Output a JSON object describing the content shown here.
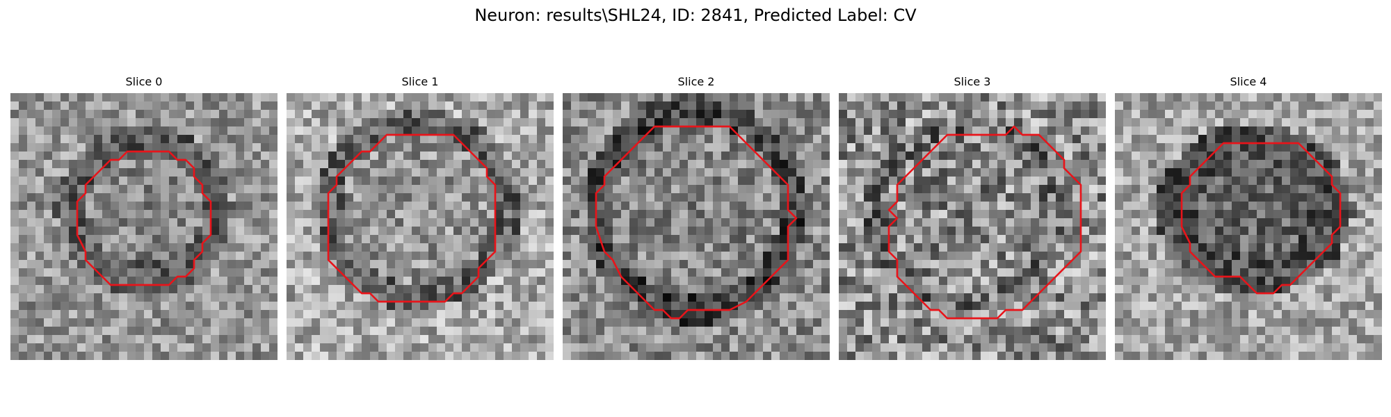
{
  "figure": {
    "title": "Neuron: results\\SHL24, ID: 2841, Predicted Label: CV",
    "contour_color": "#e8141a",
    "colormap": "grayscale",
    "panels": [
      {
        "label": "Slice 0"
      },
      {
        "label": "Slice 1"
      },
      {
        "label": "Slice 2"
      },
      {
        "label": "Slice 3"
      },
      {
        "label": "Slice 4"
      }
    ]
  }
}
